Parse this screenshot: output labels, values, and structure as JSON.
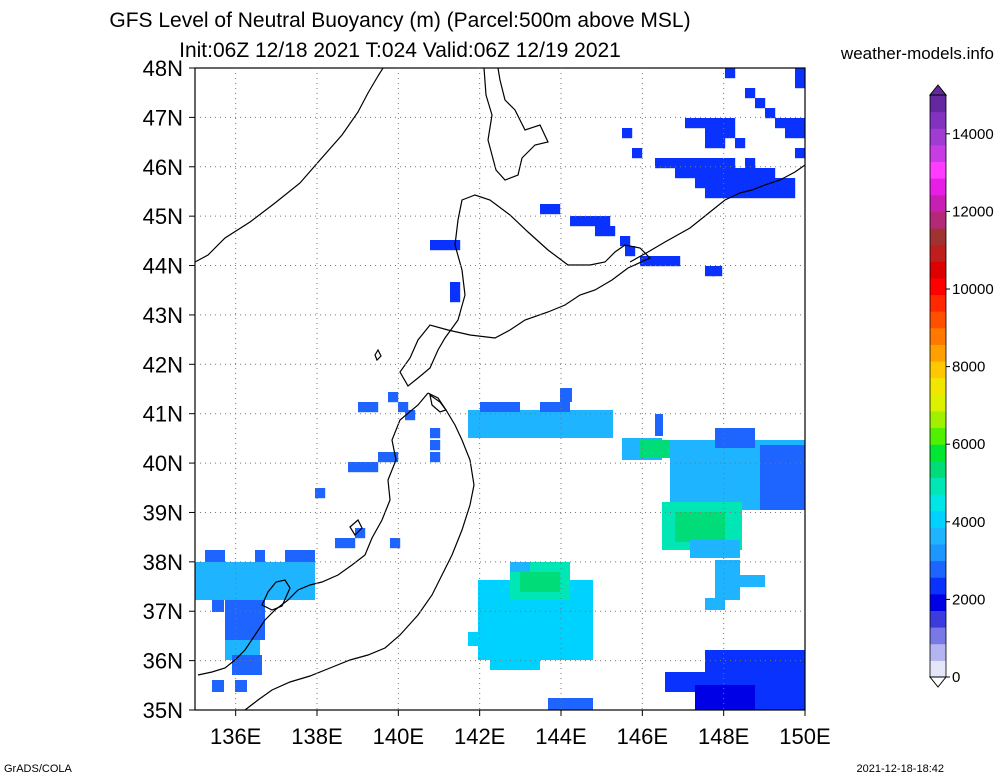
{
  "header": {
    "title_line1": "GFS Level of Neutral Buoyancy (m) (Parcel:500m above MSL)",
    "title_line2": "Init:06Z 12/18 2021 T:024 Valid:06Z 12/19 2021",
    "site": "weather-models.info"
  },
  "footer": {
    "left": "GrADS/COLA",
    "right": "2021-12-18-18:42"
  },
  "axes": {
    "lat_labels": [
      "48N",
      "47N",
      "46N",
      "45N",
      "44N",
      "43N",
      "42N",
      "41N",
      "40N",
      "39N",
      "38N",
      "37N",
      "36N",
      "35N"
    ],
    "lon_labels": [
      "136E",
      "138E",
      "140E",
      "142E",
      "144E",
      "146E",
      "148E",
      "150E"
    ]
  },
  "colorbar": {
    "labels": [
      "14000",
      "12000",
      "10000",
      "8000",
      "6000",
      "4000",
      "2000",
      "0"
    ],
    "colors": [
      "#e6e6fa",
      "#b4b4f0",
      "#7878e6",
      "#3c3cdc",
      "#0000e6",
      "#0a32ff",
      "#1e64ff",
      "#1e96ff",
      "#1eb4ff",
      "#00d2ff",
      "#00e6e6",
      "#00e6b4",
      "#00dc78",
      "#00e632",
      "#50f000",
      "#a0f000",
      "#dcf000",
      "#f0e600",
      "#ffc800",
      "#ffa000",
      "#ff7800",
      "#ff5000",
      "#ff2800",
      "#ff0000",
      "#dc0000",
      "#be1e1e",
      "#a03232",
      "#b42878",
      "#c81eb4",
      "#e61ee6",
      "#ff3cff",
      "#c83ce6",
      "#a03cd2",
      "#8232be",
      "#6428a0"
    ]
  }
}
